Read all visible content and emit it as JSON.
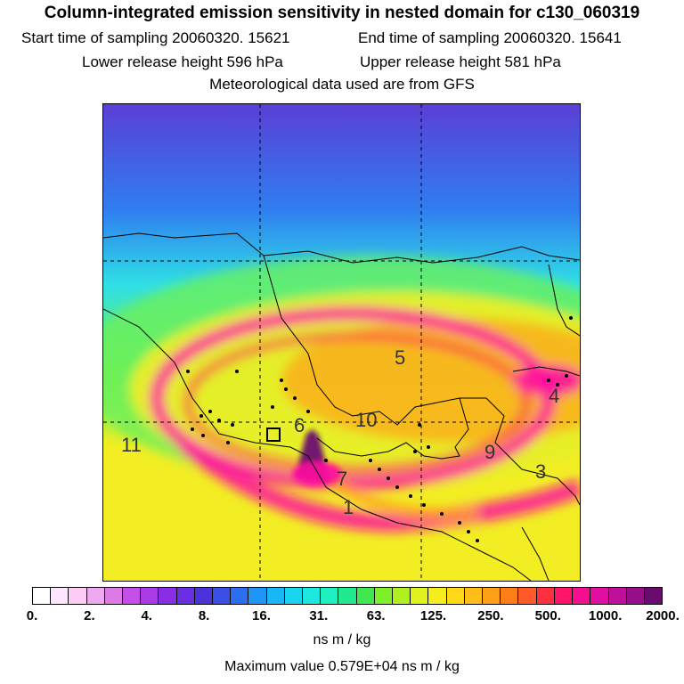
{
  "header": {
    "title": "Column-integrated emission sensitivity in nested domain for c130_060319",
    "start_time": "Start time of sampling 20060320. 15621",
    "end_time": "End time of sampling 20060320. 15641",
    "lower_release": "Lower release height  596 hPa",
    "upper_release": "Upper release height  581 hPa",
    "met_data": "Meteorological data used are from GFS"
  },
  "map": {
    "cluster_labels": [
      "1",
      "3",
      "4",
      "5",
      "6",
      "7",
      "9",
      "10",
      "11"
    ],
    "colors": {
      "far_field": "#5a3fd6",
      "blue": "#2f7df0",
      "cyan": "#2fe0e6",
      "green": "#6cf05a",
      "yellow": "#f2ee23",
      "orange": "#ffa31a",
      "red": "#ff2a4f",
      "magenta": "#ff0fa0",
      "dark": "#6a1070"
    }
  },
  "colorbar": {
    "colors": [
      "#ffffff",
      "#ffe6ff",
      "#ffccf5",
      "#f0a8f0",
      "#dd7ae6",
      "#c64fe8",
      "#a93ae6",
      "#8a2ee6",
      "#6a2fe0",
      "#4a33d8",
      "#3a4fe6",
      "#2c6ef0",
      "#1f95f5",
      "#19b7f5",
      "#1ad5f0",
      "#1ce8e0",
      "#1ef0c0",
      "#22e890",
      "#40e850",
      "#7ef02a",
      "#b0f020",
      "#dff21e",
      "#f5ee1c",
      "#ffd81a",
      "#ffbd18",
      "#ffa016",
      "#ff7e1a",
      "#ff5a2a",
      "#ff2f3f",
      "#ff1468",
      "#f50f8e",
      "#e00fa0",
      "#c00f9a",
      "#960e88",
      "#6a0c6e"
    ],
    "tick_labels": [
      "0.",
      "2.",
      "4.",
      "8.",
      "16.",
      "31.",
      "63.",
      "125.",
      "250.",
      "500.",
      "1000.",
      "2000."
    ],
    "units": "ns m / kg",
    "max_value": "Maximum value  0.579E+04 ns m / kg"
  }
}
